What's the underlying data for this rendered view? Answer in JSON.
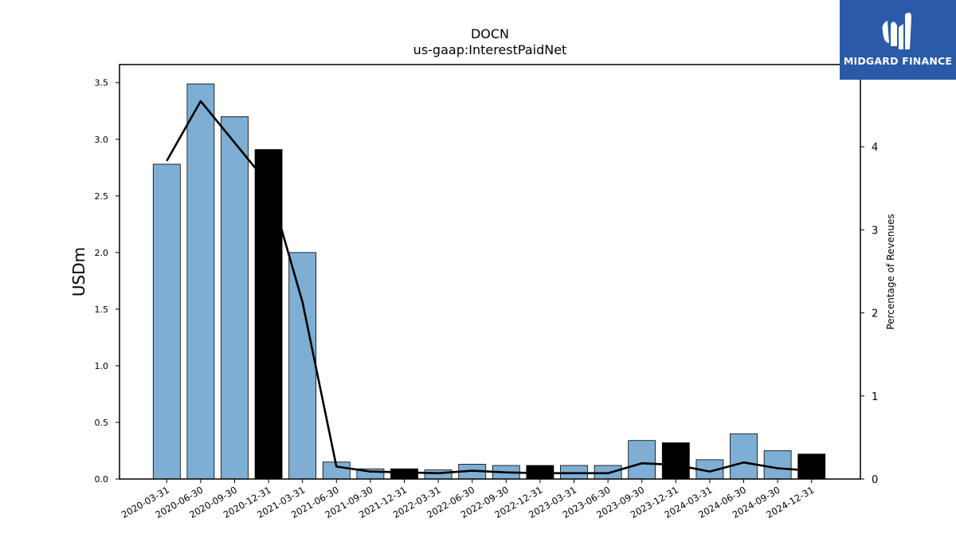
{
  "chart_data": {
    "type": "bar",
    "title": "DOCN",
    "subtitle": "us-gaap:InterestPaidNet",
    "ylabel": "USDm",
    "y2label": "Percentage of Revenues",
    "ylim": [
      0,
      3.66
    ],
    "y2lim": [
      0,
      4.99
    ],
    "yticks": [
      "0.0",
      "0.5",
      "1.0",
      "1.5",
      "2.0",
      "2.5",
      "3.0",
      "3.5"
    ],
    "y2ticks": [
      "0",
      "1",
      "2",
      "3",
      "4"
    ],
    "categories": [
      "2020-03-31",
      "2020-06-30",
      "2020-09-30",
      "2020-12-31",
      "2021-03-31",
      "2021-06-30",
      "2021-09-30",
      "2021-12-31",
      "2022-03-31",
      "2022-06-30",
      "2022-09-30",
      "2022-12-31",
      "2023-03-31",
      "2023-06-30",
      "2023-09-30",
      "2023-12-31",
      "2024-03-31",
      "2024-06-30",
      "2024-09-30",
      "2024-12-31"
    ],
    "series": [
      {
        "type": "bar",
        "values": [
          2.78,
          3.49,
          3.2,
          2.91,
          2.0,
          0.15,
          0.09,
          0.09,
          0.08,
          0.13,
          0.12,
          0.12,
          0.12,
          0.12,
          0.34,
          0.32,
          0.17,
          0.4,
          0.25,
          0.22
        ],
        "highlight": [
          false,
          false,
          false,
          true,
          false,
          false,
          false,
          true,
          false,
          false,
          false,
          true,
          false,
          false,
          false,
          true,
          false,
          false,
          false,
          true
        ]
      },
      {
        "type": "line",
        "axis": "right",
        "values": [
          3.83,
          4.55,
          4.05,
          3.55,
          2.13,
          0.15,
          0.09,
          0.08,
          0.07,
          0.1,
          0.08,
          0.07,
          0.07,
          0.07,
          0.19,
          0.17,
          0.09,
          0.2,
          0.13,
          0.1
        ]
      }
    ],
    "colors": {
      "bar": "#7eaed3",
      "bar_highlight": "#000000",
      "line": "#000000"
    },
    "grid": false,
    "legend": "none"
  },
  "logo": {
    "text": "MIDGARD FINANCE",
    "background": "#2a5aa8"
  }
}
